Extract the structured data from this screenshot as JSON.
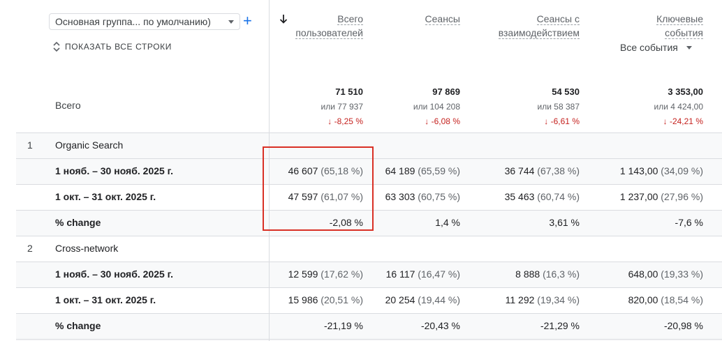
{
  "toolbar": {
    "dimension_selector": "Основная группа... по умолчанию)",
    "show_all_rows": "ПОКАЗАТЬ ВСЕ СТРОКИ"
  },
  "columns": [
    {
      "line1": "Всего",
      "line2": "пользователей",
      "sorted": true
    },
    {
      "line1": "Сеансы",
      "line2": ""
    },
    {
      "line1": "Сеансы с",
      "line2": "взаимодействием"
    },
    {
      "line1": "Ключевые",
      "line2": "события"
    }
  ],
  "events_selector": "Все события",
  "totals": {
    "label": "Всего",
    "values": [
      {
        "value": "71 510",
        "compare": "или 77 937",
        "delta": "↓ -8,25 %"
      },
      {
        "value": "97 869",
        "compare": "или 104 208",
        "delta": "↓ -6,08 %"
      },
      {
        "value": "54 530",
        "compare": "или 58 387",
        "delta": "↓ -6,61 %"
      },
      {
        "value": "3 353,00",
        "compare": "или 4 424,00",
        "delta": "↓ -24,21 %"
      }
    ]
  },
  "groups": [
    {
      "rank": "1",
      "name": "Organic Search",
      "rows": [
        {
          "label": "1 нояб. – 30 нояб. 2025 г.",
          "cells": [
            {
              "v": "46 607",
              "p": "(65,18 %)"
            },
            {
              "v": "64 189",
              "p": "(65,59 %)"
            },
            {
              "v": "36 744",
              "p": "(67,38 %)"
            },
            {
              "v": "1 143,00",
              "p": "(34,09 %)"
            }
          ]
        },
        {
          "label": "1 окт. – 31 окт. 2025 г.",
          "cells": [
            {
              "v": "47 597",
              "p": "(61,07 %)"
            },
            {
              "v": "63 303",
              "p": "(60,75 %)"
            },
            {
              "v": "35 463",
              "p": "(60,74 %)"
            },
            {
              "v": "1 237,00",
              "p": "(27,96 %)"
            }
          ]
        },
        {
          "label": "% change",
          "cells": [
            {
              "v": "-2,08 %",
              "p": ""
            },
            {
              "v": "1,4 %",
              "p": ""
            },
            {
              "v": "3,61 %",
              "p": ""
            },
            {
              "v": "-7,6 %",
              "p": ""
            }
          ]
        }
      ]
    },
    {
      "rank": "2",
      "name": "Cross-network",
      "rows": [
        {
          "label": "1 нояб. – 30 нояб. 2025 г.",
          "cells": [
            {
              "v": "12 599",
              "p": "(17,62 %)"
            },
            {
              "v": "16 117",
              "p": "(16,47 %)"
            },
            {
              "v": "8 888",
              "p": "(16,3 %)"
            },
            {
              "v": "648,00",
              "p": "(19,33 %)"
            }
          ]
        },
        {
          "label": "1 окт. – 31 окт. 2025 г.",
          "cells": [
            {
              "v": "15 986",
              "p": "(20,51 %)"
            },
            {
              "v": "20 254",
              "p": "(19,44 %)"
            },
            {
              "v": "11 292",
              "p": "(19,34 %)"
            },
            {
              "v": "820,00",
              "p": "(18,54 %)"
            }
          ]
        },
        {
          "label": "% change",
          "cells": [
            {
              "v": "-21,19 %",
              "p": ""
            },
            {
              "v": "-20,43 %",
              "p": ""
            },
            {
              "v": "-21,29 %",
              "p": ""
            },
            {
              "v": "-20,98 %",
              "p": ""
            }
          ]
        }
      ]
    }
  ]
}
